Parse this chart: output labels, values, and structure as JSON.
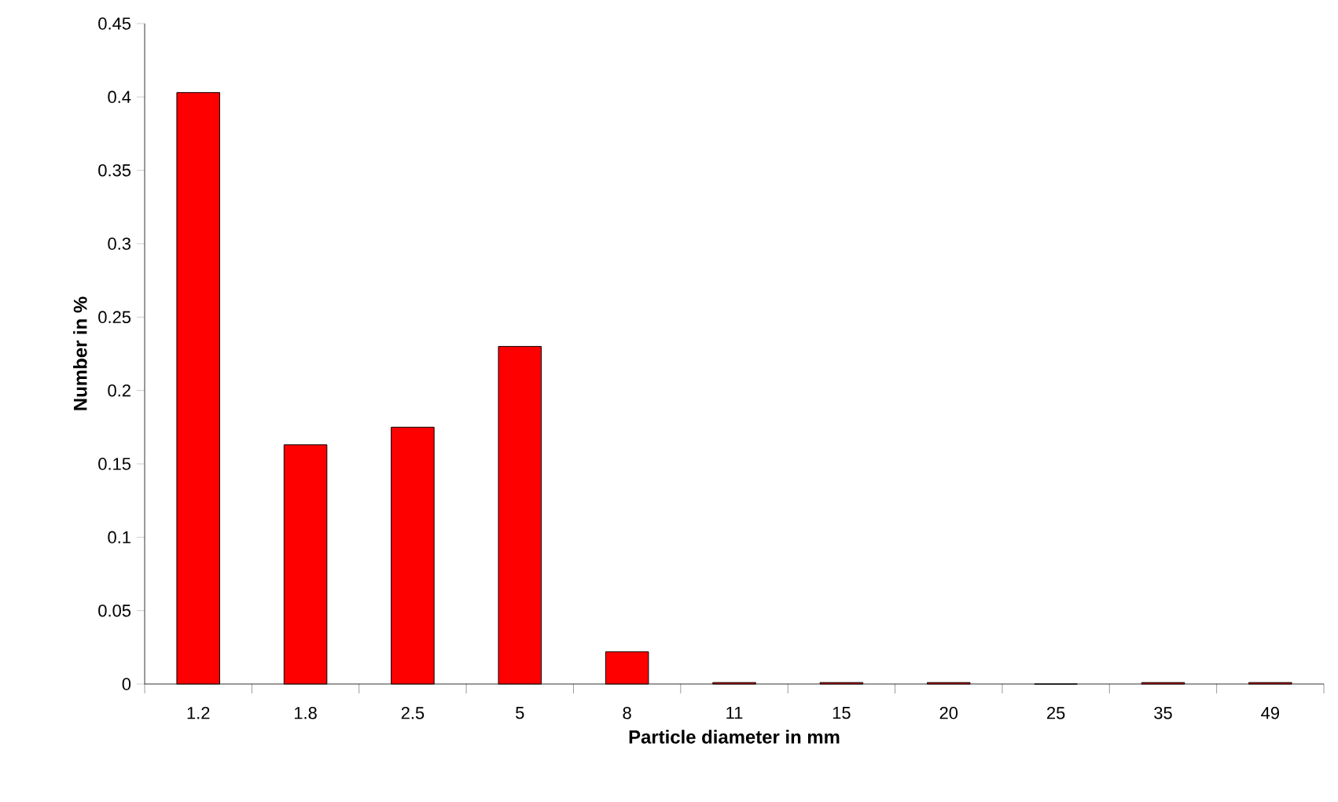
{
  "chart_data": {
    "type": "bar",
    "xlabel": "Particle diameter in mm",
    "ylabel": "Number in %",
    "categories": [
      "1.2",
      "1.8",
      "2.5",
      "5",
      "8",
      "11",
      "15",
      "20",
      "25",
      "35",
      "49"
    ],
    "values": [
      0.403,
      0.163,
      0.175,
      0.23,
      0.022,
      0.001,
      0.001,
      0.001,
      0,
      0.001,
      0.001
    ],
    "color": "#ff0000",
    "ylim": [
      0,
      0.45
    ],
    "yticks": [
      0,
      0.05,
      0.1,
      0.15,
      0.2,
      0.25,
      0.3,
      0.35,
      0.4,
      0.45
    ]
  }
}
